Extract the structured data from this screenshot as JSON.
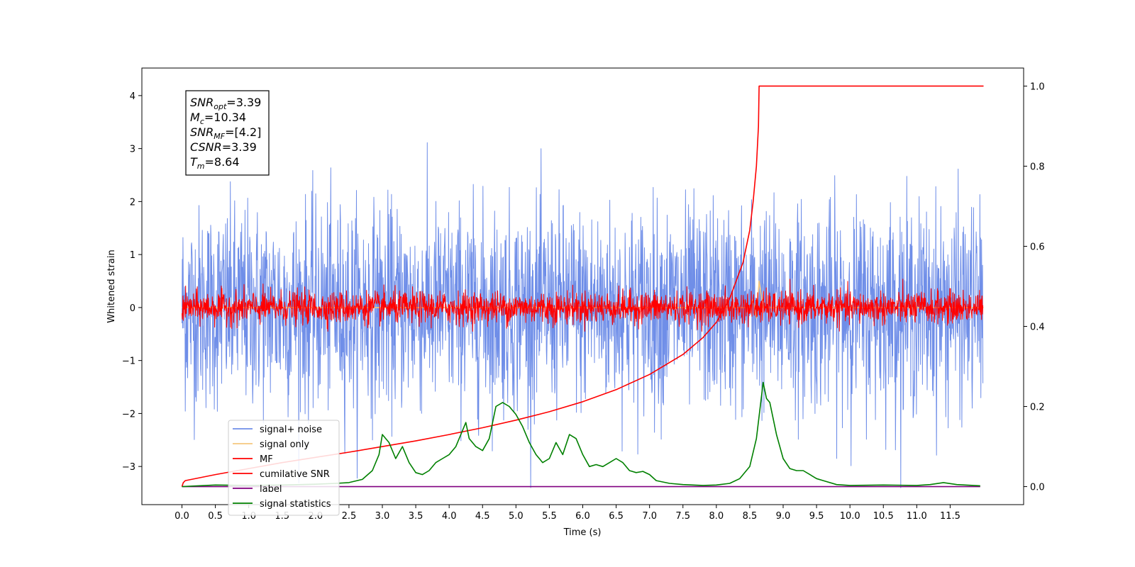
{
  "chart_data": {
    "type": "line",
    "xlabel": "Time (s)",
    "ylabel": "Whitened strain",
    "xlim": [
      -0.6,
      12.6
    ],
    "ylim": [
      -3.72,
      4.52
    ],
    "y2lim": [
      -0.045,
      1.045
    ],
    "x_ticks": [
      0.0,
      0.5,
      1.0,
      1.5,
      2.0,
      2.5,
      3.0,
      3.5,
      4.0,
      4.5,
      5.0,
      5.5,
      6.0,
      6.5,
      7.0,
      7.5,
      8.0,
      8.5,
      9.0,
      9.5,
      10.0,
      10.5,
      11.0,
      11.5
    ],
    "x_tick_labels": [
      "0.0",
      "0.5",
      "1.0",
      "1.5",
      "2.0",
      "2.5",
      "3.0",
      "3.5",
      "4.0",
      "4.5",
      "5.0",
      "5.5",
      "6.0",
      "6.5",
      "7.0",
      "7.5",
      "8.0",
      "8.5",
      "9.0",
      "9.5",
      "10.0",
      "10.5",
      "11.0",
      "11.5"
    ],
    "y_ticks": [
      -3,
      -2,
      -1,
      0,
      1,
      2,
      3,
      4
    ],
    "y_tick_labels": [
      "−3",
      "−2",
      "−1",
      "0",
      "1",
      "2",
      "3",
      "4"
    ],
    "y2_ticks": [
      0.0,
      0.2,
      0.4,
      0.6,
      0.8,
      1.0
    ],
    "y2_tick_labels": [
      "0.0",
      "0.2",
      "0.4",
      "0.6",
      "0.8",
      "1.0"
    ],
    "annotation": [
      {
        "base": "SNR",
        "sub": "opt",
        "value": "=3.39"
      },
      {
        "base": "M",
        "sub": "c",
        "value": "=10.34"
      },
      {
        "base": "SNR",
        "sub": "MF",
        "value": "=[4.2]"
      },
      {
        "base": "CSNR",
        "sub": "",
        "value": "=3.39"
      },
      {
        "base": "T",
        "sub": "m",
        "value": "=8.64"
      }
    ],
    "legend": {
      "placement": "lower-left",
      "entries": [
        {
          "label": "signal+ noise",
          "color": "#6f8ee8"
        },
        {
          "label": "signal only",
          "color": "#f5c77e"
        },
        {
          "label": "MF",
          "color": "#ff0000"
        },
        {
          "label": "cumilative SNR",
          "color": "#ff0000"
        },
        {
          "label": "label",
          "color": "#800080"
        },
        {
          "label": "signal statistics",
          "color": "#008000"
        }
      ]
    },
    "series": [
      {
        "name": "signal+ noise",
        "axis": "left",
        "color": "#6f8ee8",
        "style": "dense-noise",
        "x_range": [
          0.0,
          11.99
        ],
        "noise_sigma": 0.95,
        "noise_range": [
          -3.4,
          4.2
        ]
      },
      {
        "name": "signal only",
        "axis": "left",
        "color": "#f5c77e",
        "x": [
          0.0,
          8.5,
          8.55,
          8.6,
          8.64,
          8.7,
          12.0
        ],
        "y": [
          0.0,
          0.0,
          0.15,
          -0.2,
          0.5,
          0.0,
          0.0
        ]
      },
      {
        "name": "MF",
        "axis": "left",
        "color": "#ff0000",
        "style": "dense-noise",
        "x_range": [
          0.0,
          11.99
        ],
        "noise_sigma": 0.15,
        "noise_range": [
          -0.45,
          1.0
        ]
      },
      {
        "name": "cumilative SNR",
        "axis": "right",
        "color": "#ff0000",
        "x": [
          0.0,
          0.02,
          0.05,
          0.5,
          1.0,
          1.5,
          2.0,
          2.5,
          3.0,
          3.5,
          4.0,
          4.5,
          5.0,
          5.5,
          6.0,
          6.5,
          7.0,
          7.5,
          7.8,
          8.0,
          8.2,
          8.4,
          8.5,
          8.55,
          8.6,
          8.63,
          8.64,
          8.66,
          12.0
        ],
        "y": [
          0.0,
          0.01,
          0.015,
          0.03,
          0.045,
          0.06,
          0.073,
          0.086,
          0.1,
          0.114,
          0.13,
          0.147,
          0.166,
          0.187,
          0.212,
          0.242,
          0.28,
          0.33,
          0.372,
          0.41,
          0.47,
          0.56,
          0.64,
          0.71,
          0.8,
          0.9,
          1.0,
          1.0,
          1.0
        ]
      },
      {
        "name": "label",
        "axis": "right",
        "color": "#800080",
        "x": [
          0.0,
          11.95
        ],
        "y": [
          0.0,
          0.0
        ]
      },
      {
        "name": "signal statistics",
        "axis": "right",
        "color": "#008000",
        "x": [
          0.0,
          0.5,
          1.0,
          1.5,
          2.0,
          2.3,
          2.5,
          2.7,
          2.85,
          2.95,
          3.0,
          3.1,
          3.2,
          3.3,
          3.4,
          3.5,
          3.6,
          3.7,
          3.8,
          3.9,
          4.0,
          4.1,
          4.2,
          4.25,
          4.3,
          4.4,
          4.5,
          4.6,
          4.7,
          4.8,
          4.9,
          5.0,
          5.1,
          5.2,
          5.3,
          5.4,
          5.5,
          5.6,
          5.7,
          5.8,
          5.9,
          6.0,
          6.1,
          6.2,
          6.3,
          6.4,
          6.5,
          6.6,
          6.7,
          6.8,
          6.9,
          7.0,
          7.1,
          7.3,
          7.5,
          7.8,
          8.0,
          8.2,
          8.35,
          8.5,
          8.6,
          8.7,
          8.75,
          8.8,
          8.9,
          9.0,
          9.1,
          9.2,
          9.3,
          9.4,
          9.5,
          9.6,
          9.8,
          10.0,
          10.5,
          11.0,
          11.2,
          11.4,
          11.6,
          11.95
        ],
        "y": [
          0.0,
          0.004,
          0.003,
          0.004,
          0.006,
          0.008,
          0.01,
          0.018,
          0.04,
          0.08,
          0.13,
          0.11,
          0.07,
          0.1,
          0.06,
          0.035,
          0.03,
          0.04,
          0.06,
          0.07,
          0.08,
          0.1,
          0.14,
          0.16,
          0.12,
          0.1,
          0.09,
          0.12,
          0.2,
          0.21,
          0.2,
          0.18,
          0.15,
          0.11,
          0.08,
          0.06,
          0.07,
          0.11,
          0.08,
          0.13,
          0.12,
          0.08,
          0.05,
          0.055,
          0.05,
          0.06,
          0.07,
          0.06,
          0.04,
          0.035,
          0.038,
          0.03,
          0.015,
          0.008,
          0.005,
          0.003,
          0.004,
          0.008,
          0.02,
          0.05,
          0.12,
          0.26,
          0.22,
          0.21,
          0.13,
          0.07,
          0.045,
          0.04,
          0.04,
          0.03,
          0.02,
          0.015,
          0.005,
          0.003,
          0.004,
          0.003,
          0.005,
          0.01,
          0.005,
          0.002
        ]
      }
    ]
  }
}
